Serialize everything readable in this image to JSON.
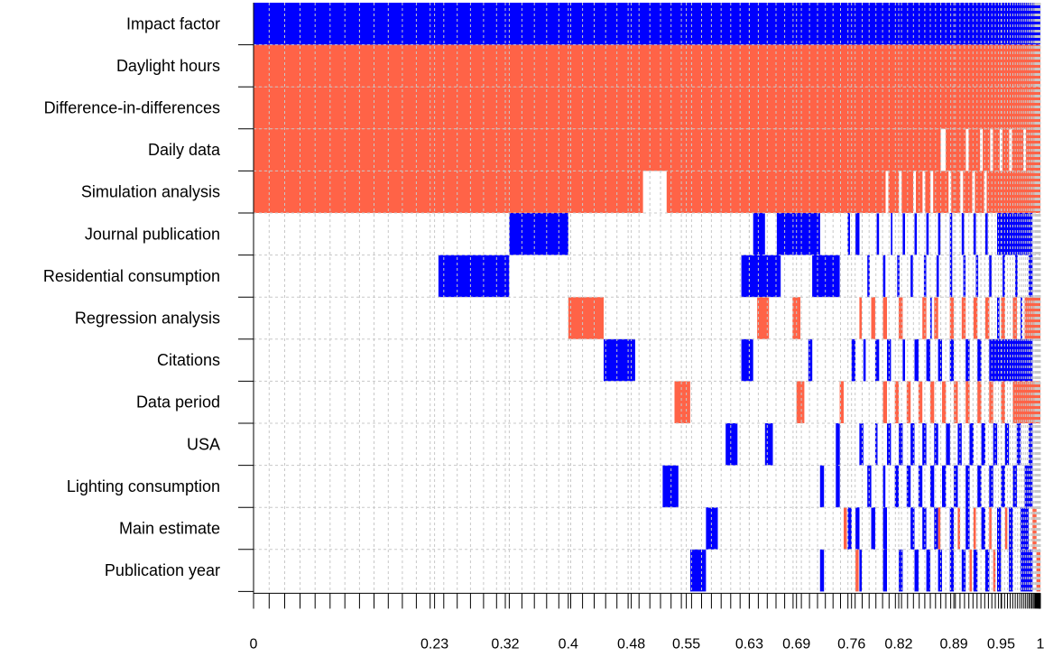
{
  "chart_data": {
    "type": "heatmap",
    "title": "",
    "xlabel": "",
    "ylabel": "",
    "xlim": [
      0,
      1
    ],
    "x_tick_labels": [
      {
        "value": 0,
        "label": "0"
      },
      {
        "value": 0.23,
        "label": "0.23"
      },
      {
        "value": 0.32,
        "label": "0.32"
      },
      {
        "value": 0.4,
        "label": "0.4"
      },
      {
        "value": 0.48,
        "label": "0.48"
      },
      {
        "value": 0.55,
        "label": "0.55"
      },
      {
        "value": 0.63,
        "label": "0.63"
      },
      {
        "value": 0.69,
        "label": "0.69"
      },
      {
        "value": 0.76,
        "label": "0.76"
      },
      {
        "value": 0.82,
        "label": "0.82"
      },
      {
        "value": 0.89,
        "label": "0.89"
      },
      {
        "value": 0.95,
        "label": "0.95"
      },
      {
        "value": 1,
        "label": "1"
      }
    ],
    "colors": {
      "positive": "#0000FF",
      "negative": "#FF6347",
      "grid": "#C8C8C8",
      "axis": "#000000"
    },
    "grid": true,
    "variables": [
      {
        "name": "Impact factor",
        "segments": [
          [
            0,
            1,
            "positive"
          ]
        ],
        "gaps": []
      },
      {
        "name": "Daylight hours",
        "segments": [
          [
            0,
            1,
            "negative"
          ]
        ],
        "gaps": []
      },
      {
        "name": "Difference-in-differences",
        "segments": [
          [
            0,
            1,
            "negative"
          ]
        ],
        "gaps": []
      },
      {
        "name": "Daily data",
        "segments": [
          [
            0,
            1,
            "negative"
          ]
        ],
        "gaps": [
          0.875,
          0.878,
          0.907,
          0.925,
          0.938,
          0.95,
          0.962,
          0.98
        ]
      },
      {
        "name": "Simulation analysis",
        "segments": [
          [
            0,
            0.495,
            "negative"
          ],
          [
            0.525,
            1,
            "negative"
          ]
        ],
        "gaps": [
          0.805,
          0.822,
          0.84,
          0.852,
          0.862,
          0.885,
          0.9,
          0.915,
          0.93
        ]
      },
      {
        "name": "Journal publication",
        "segments": [
          [
            0.325,
            0.4,
            "positive"
          ],
          [
            0.635,
            0.65,
            "positive"
          ],
          [
            0.665,
            0.72,
            "positive"
          ],
          [
            0.755,
            0.758,
            "positive"
          ],
          [
            0.765,
            0.77,
            "positive"
          ],
          [
            0.792,
            0.795,
            "positive"
          ],
          [
            0.81,
            0.812,
            "positive"
          ],
          [
            0.825,
            0.828,
            "positive"
          ],
          [
            0.84,
            0.843,
            "positive"
          ],
          [
            0.855,
            0.858,
            "positive"
          ],
          [
            0.87,
            0.873,
            "positive"
          ],
          [
            0.885,
            0.888,
            "positive"
          ],
          [
            0.9,
            0.903,
            "positive"
          ],
          [
            0.915,
            0.918,
            "positive"
          ],
          [
            0.93,
            0.933,
            "positive"
          ],
          [
            0.945,
            0.99,
            "positive"
          ]
        ]
      },
      {
        "name": "Residential consumption",
        "segments": [
          [
            0.235,
            0.325,
            "positive"
          ],
          [
            0.62,
            0.67,
            "positive"
          ],
          [
            0.71,
            0.745,
            "positive"
          ],
          [
            0.78,
            0.783,
            "positive"
          ],
          [
            0.8,
            0.803,
            "positive"
          ],
          [
            0.818,
            0.821,
            "positive"
          ],
          [
            0.835,
            0.838,
            "positive"
          ],
          [
            0.852,
            0.855,
            "positive"
          ],
          [
            0.868,
            0.871,
            "positive"
          ],
          [
            0.885,
            0.888,
            "positive"
          ],
          [
            0.902,
            0.905,
            "positive"
          ],
          [
            0.918,
            0.921,
            "positive"
          ],
          [
            0.935,
            0.938,
            "positive"
          ],
          [
            0.952,
            0.955,
            "positive"
          ],
          [
            0.968,
            0.971,
            "positive"
          ],
          [
            0.985,
            0.99,
            "positive"
          ]
        ]
      },
      {
        "name": "Regression analysis",
        "segments": [
          [
            0.4,
            0.445,
            "negative"
          ],
          [
            0.64,
            0.655,
            "negative"
          ],
          [
            0.685,
            0.695,
            "negative"
          ],
          [
            0.77,
            0.773,
            "negative"
          ],
          [
            0.785,
            0.79,
            "negative"
          ],
          [
            0.8,
            0.805,
            "negative"
          ],
          [
            0.82,
            0.825,
            "negative"
          ],
          [
            0.85,
            0.855,
            "negative"
          ],
          [
            0.865,
            0.87,
            "negative"
          ],
          [
            0.885,
            0.89,
            "negative"
          ],
          [
            0.9,
            0.905,
            "negative"
          ],
          [
            0.915,
            0.92,
            "negative"
          ],
          [
            0.93,
            0.935,
            "negative"
          ],
          [
            0.95,
            0.955,
            "negative"
          ],
          [
            0.965,
            0.97,
            "negative"
          ],
          [
            0.98,
            1,
            "negative"
          ],
          [
            0.86,
            0.862,
            "positive"
          ],
          [
            0.945,
            0.948,
            "positive"
          ],
          [
            0.975,
            0.977,
            "positive"
          ]
        ]
      },
      {
        "name": "Citations",
        "segments": [
          [
            0.445,
            0.485,
            "positive"
          ],
          [
            0.62,
            0.635,
            "positive"
          ],
          [
            0.705,
            0.71,
            "positive"
          ],
          [
            0.76,
            0.765,
            "positive"
          ],
          [
            0.775,
            0.778,
            "positive"
          ],
          [
            0.79,
            0.795,
            "positive"
          ],
          [
            0.805,
            0.81,
            "positive"
          ],
          [
            0.825,
            0.828,
            "positive"
          ],
          [
            0.84,
            0.845,
            "positive"
          ],
          [
            0.855,
            0.86,
            "positive"
          ],
          [
            0.87,
            0.875,
            "positive"
          ],
          [
            0.885,
            0.89,
            "positive"
          ],
          [
            0.905,
            0.91,
            "positive"
          ],
          [
            0.92,
            0.925,
            "positive"
          ],
          [
            0.935,
            0.99,
            "positive"
          ]
        ]
      },
      {
        "name": "Data period",
        "segments": [
          [
            0.535,
            0.555,
            "negative"
          ],
          [
            0.69,
            0.7,
            "negative"
          ],
          [
            0.745,
            0.75,
            "negative"
          ],
          [
            0.8,
            0.805,
            "negative"
          ],
          [
            0.815,
            0.82,
            "negative"
          ],
          [
            0.83,
            0.835,
            "negative"
          ],
          [
            0.845,
            0.85,
            "negative"
          ],
          [
            0.86,
            0.865,
            "negative"
          ],
          [
            0.875,
            0.88,
            "negative"
          ],
          [
            0.89,
            0.895,
            "negative"
          ],
          [
            0.905,
            0.91,
            "negative"
          ],
          [
            0.92,
            0.925,
            "negative"
          ],
          [
            0.935,
            0.94,
            "negative"
          ],
          [
            0.95,
            0.955,
            "negative"
          ],
          [
            0.965,
            1,
            "negative"
          ]
        ]
      },
      {
        "name": "USA",
        "segments": [
          [
            0.6,
            0.615,
            "positive"
          ],
          [
            0.65,
            0.66,
            "positive"
          ],
          [
            0.74,
            0.745,
            "positive"
          ],
          [
            0.77,
            0.775,
            "positive"
          ],
          [
            0.79,
            0.793,
            "positive"
          ],
          [
            0.805,
            0.81,
            "positive"
          ],
          [
            0.82,
            0.825,
            "positive"
          ],
          [
            0.835,
            0.84,
            "positive"
          ],
          [
            0.85,
            0.855,
            "positive"
          ],
          [
            0.865,
            0.87,
            "positive"
          ],
          [
            0.88,
            0.885,
            "positive"
          ],
          [
            0.895,
            0.9,
            "positive"
          ],
          [
            0.91,
            0.915,
            "positive"
          ],
          [
            0.925,
            0.93,
            "positive"
          ],
          [
            0.94,
            0.945,
            "positive"
          ],
          [
            0.955,
            0.96,
            "positive"
          ],
          [
            0.97,
            0.975,
            "positive"
          ],
          [
            0.985,
            0.99,
            "positive"
          ]
        ]
      },
      {
        "name": "Lighting consumption",
        "segments": [
          [
            0.52,
            0.54,
            "positive"
          ],
          [
            0.72,
            0.725,
            "positive"
          ],
          [
            0.74,
            0.745,
            "positive"
          ],
          [
            0.78,
            0.785,
            "positive"
          ],
          [
            0.8,
            0.803,
            "positive"
          ],
          [
            0.815,
            0.82,
            "positive"
          ],
          [
            0.83,
            0.835,
            "positive"
          ],
          [
            0.845,
            0.85,
            "positive"
          ],
          [
            0.86,
            0.865,
            "positive"
          ],
          [
            0.875,
            0.88,
            "positive"
          ],
          [
            0.89,
            0.895,
            "positive"
          ],
          [
            0.905,
            0.91,
            "positive"
          ],
          [
            0.92,
            0.925,
            "positive"
          ],
          [
            0.935,
            0.94,
            "positive"
          ],
          [
            0.95,
            0.955,
            "positive"
          ],
          [
            0.965,
            0.97,
            "positive"
          ],
          [
            0.98,
            0.99,
            "positive"
          ]
        ]
      },
      {
        "name": "Main estimate",
        "segments": [
          [
            0.575,
            0.59,
            "positive"
          ],
          [
            0.755,
            0.76,
            "positive"
          ],
          [
            0.765,
            0.77,
            "positive"
          ],
          [
            0.785,
            0.79,
            "positive"
          ],
          [
            0.8,
            0.805,
            "positive"
          ],
          [
            0.835,
            0.84,
            "positive"
          ],
          [
            0.85,
            0.855,
            "positive"
          ],
          [
            0.865,
            0.87,
            "positive"
          ],
          [
            0.885,
            0.89,
            "positive"
          ],
          [
            0.905,
            0.91,
            "positive"
          ],
          [
            0.925,
            0.93,
            "positive"
          ],
          [
            0.945,
            0.95,
            "positive"
          ],
          [
            0.96,
            0.965,
            "positive"
          ],
          [
            0.975,
            0.985,
            "positive"
          ],
          [
            0.75,
            0.754,
            "negative"
          ],
          [
            0.87,
            0.873,
            "negative"
          ],
          [
            0.895,
            0.898,
            "negative"
          ],
          [
            0.915,
            0.918,
            "negative"
          ],
          [
            0.935,
            0.938,
            "negative"
          ],
          [
            0.955,
            0.958,
            "negative"
          ],
          [
            0.99,
            0.995,
            "negative"
          ]
        ]
      },
      {
        "name": "Publication year",
        "segments": [
          [
            0.555,
            0.575,
            "positive"
          ],
          [
            0.72,
            0.725,
            "positive"
          ],
          [
            0.77,
            0.773,
            "positive"
          ],
          [
            0.8,
            0.805,
            "positive"
          ],
          [
            0.82,
            0.825,
            "positive"
          ],
          [
            0.84,
            0.845,
            "positive"
          ],
          [
            0.855,
            0.86,
            "positive"
          ],
          [
            0.87,
            0.875,
            "positive"
          ],
          [
            0.885,
            0.89,
            "positive"
          ],
          [
            0.9,
            0.905,
            "positive"
          ],
          [
            0.915,
            0.92,
            "positive"
          ],
          [
            0.93,
            0.935,
            "positive"
          ],
          [
            0.945,
            0.95,
            "positive"
          ],
          [
            0.96,
            0.965,
            "positive"
          ],
          [
            0.975,
            0.99,
            "positive"
          ],
          [
            0.765,
            0.769,
            "negative"
          ],
          [
            0.91,
            0.913,
            "negative"
          ],
          [
            0.94,
            0.943,
            "negative"
          ],
          [
            0.995,
            1,
            "negative"
          ]
        ]
      }
    ]
  }
}
